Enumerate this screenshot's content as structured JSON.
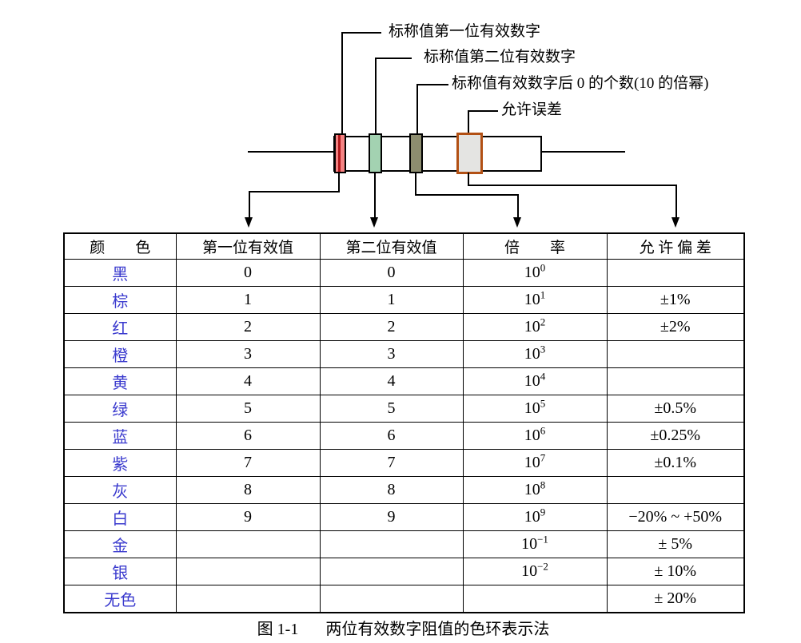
{
  "figure": {
    "callouts": [
      {
        "text": "标称值第一位有效数字"
      },
      {
        "text": "标称值第二位有效数字"
      },
      {
        "text": "标称值有效数字后 0 的个数(10 的倍幂)"
      },
      {
        "text": "允许误差"
      }
    ],
    "resistor": {
      "bands": [
        {
          "role": "first-digit-band",
          "fill": "#F58383",
          "stripe": "#B2191B",
          "border": "#000000"
        },
        {
          "role": "second-digit-band",
          "fill": "#A3D2B1",
          "border": "#000000"
        },
        {
          "role": "multiplier-band",
          "fill": "#8D8D6F",
          "border": "#000000"
        },
        {
          "role": "tolerance-band",
          "fill": "#E4E4E2",
          "border": "#B25014"
        }
      ]
    }
  },
  "table": {
    "headers": [
      "颜　　色",
      "第一位有效值",
      "第二位有效值",
      "倍　　率",
      "允 许 偏 差"
    ],
    "rows": [
      {
        "color": "黑",
        "d1": "0",
        "d2": "0",
        "base": "10",
        "exp": "0",
        "tol": ""
      },
      {
        "color": "棕",
        "d1": "1",
        "d2": "1",
        "base": "10",
        "exp": "1",
        "tol": "±1%"
      },
      {
        "color": "红",
        "d1": "2",
        "d2": "2",
        "base": "10",
        "exp": "2",
        "tol": "±2%"
      },
      {
        "color": "橙",
        "d1": "3",
        "d2": "3",
        "base": "10",
        "exp": "3",
        "tol": ""
      },
      {
        "color": "黄",
        "d1": "4",
        "d2": "4",
        "base": "10",
        "exp": "4",
        "tol": ""
      },
      {
        "color": "绿",
        "d1": "5",
        "d2": "5",
        "base": "10",
        "exp": "5",
        "tol": "±0.5%"
      },
      {
        "color": "蓝",
        "d1": "6",
        "d2": "6",
        "base": "10",
        "exp": "6",
        "tol": "±0.25%"
      },
      {
        "color": "紫",
        "d1": "7",
        "d2": "7",
        "base": "10",
        "exp": "7",
        "tol": "±0.1%"
      },
      {
        "color": "灰",
        "d1": "8",
        "d2": "8",
        "base": "10",
        "exp": "8",
        "tol": ""
      },
      {
        "color": "白",
        "d1": "9",
        "d2": "9",
        "base": "10",
        "exp": "9",
        "tol": "−20% ~ +50%"
      },
      {
        "color": "金",
        "d1": "",
        "d2": "",
        "base": "10",
        "exp": "−1",
        "tol": "± 5%"
      },
      {
        "color": "银",
        "d1": "",
        "d2": "",
        "base": "10",
        "exp": "−2",
        "tol": "± 10%"
      },
      {
        "color": "无色",
        "d1": "",
        "d2": "",
        "base": "",
        "exp": "",
        "tol": "± 20%"
      }
    ]
  },
  "caption": {
    "label": "图 1-1",
    "text": "两位有效数字阻值的色环表示法"
  },
  "colors": {
    "color_name_text": "#3A3ACE",
    "line_black": "#000000"
  }
}
